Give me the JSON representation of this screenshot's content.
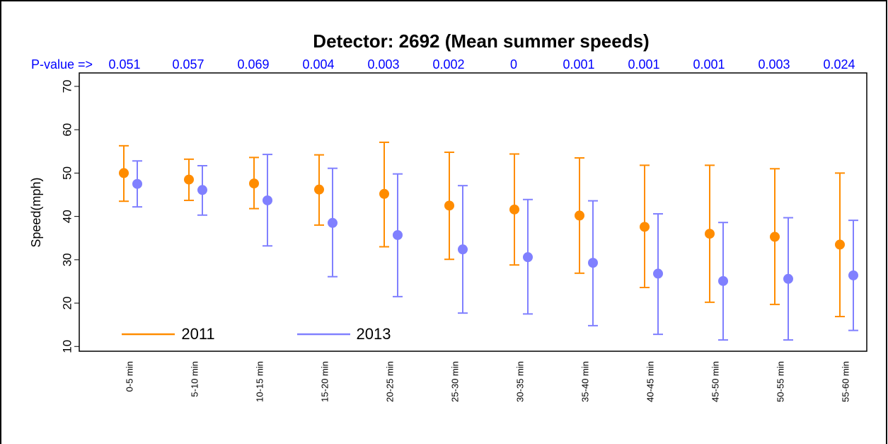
{
  "chart_data": {
    "type": "errorbar",
    "title": "Detector: 2692 (Mean summer speeds)",
    "annotation_label": "P-value =>",
    "p_values": [
      0.051,
      0.057,
      0.069,
      0.004,
      0.003,
      0.002,
      0,
      0.001,
      0.001,
      0.001,
      0.003,
      0.024
    ],
    "y_label": "Speed(mph)",
    "categories": [
      "0-5 min",
      "5-10 min",
      "10-15 min",
      "15-20 min",
      "20-25 min",
      "25-30 min",
      "30-35 min",
      "35-40 min",
      "40-45 min",
      "45-50 min",
      "50-55 min",
      "55-60 min"
    ],
    "series": [
      {
        "name": "2011",
        "color": "#ff8c00",
        "values": [
          50,
          48.5,
          47.6,
          46.2,
          45.2,
          42.5,
          41.6,
          40.2,
          37.6,
          36,
          35.3,
          33.5
        ],
        "lower": [
          43.5,
          43.7,
          41.8,
          38,
          33,
          30.1,
          28.8,
          26.9,
          23.6,
          20.2,
          19.7,
          16.9
        ],
        "upper": [
          56.3,
          53.2,
          53.6,
          54.2,
          57.1,
          54.8,
          54.4,
          53.5,
          51.8,
          51.8,
          51,
          50
        ]
      },
      {
        "name": "2013",
        "color": "#8080ff",
        "values": [
          47.5,
          46.1,
          43.7,
          38.5,
          35.7,
          32.4,
          30.6,
          29.3,
          26.8,
          25.1,
          25.6,
          26.4
        ],
        "lower": [
          42.2,
          40.3,
          33.2,
          26.1,
          21.5,
          17.7,
          17.5,
          14.8,
          12.8,
          11.5,
          11.5,
          13.7
        ],
        "upper": [
          52.8,
          51.7,
          54.3,
          51.1,
          49.8,
          47.1,
          43.9,
          43.6,
          40.6,
          38.6,
          39.7,
          39.1
        ]
      }
    ],
    "ylim": [
      8.9,
      73.1
    ],
    "yticks": [
      10,
      20,
      30,
      40,
      50,
      60,
      70
    ],
    "legend": "bottom-left"
  }
}
